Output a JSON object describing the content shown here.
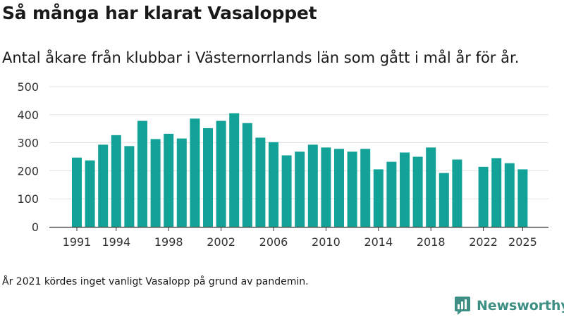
{
  "header": {
    "title": "Så många har klarat Vasaloppet",
    "subtitle": "Antal åkare från klubbar i Västernorrlands län som gått i mål år för år."
  },
  "footnote": "År 2021 kördes inget vanligt Vasalopp på grund av pandemin.",
  "brand": {
    "name": "Newsworthy",
    "icon": "newsworthy-logo-icon",
    "color": "#3d8f84"
  },
  "colors": {
    "bar": "#12a297",
    "grid": "#e3e3e3",
    "axis": "#333333"
  },
  "chart_data": {
    "type": "bar",
    "title": "Så många har klarat Vasaloppet",
    "xlabel": "",
    "ylabel": "",
    "ylim": [
      0,
      500
    ],
    "yticks": [
      0,
      100,
      200,
      300,
      400,
      500
    ],
    "xticks": [
      1991,
      1994,
      1998,
      2002,
      2006,
      2010,
      2014,
      2018,
      2022,
      2025
    ],
    "xrange": [
      1991,
      2025
    ],
    "grid": true,
    "legend": "none",
    "categories": [
      1991,
      1992,
      1993,
      1994,
      1995,
      1996,
      1997,
      1998,
      1999,
      2000,
      2001,
      2002,
      2003,
      2004,
      2005,
      2006,
      2007,
      2008,
      2009,
      2010,
      2011,
      2012,
      2013,
      2014,
      2015,
      2016,
      2017,
      2018,
      2019,
      2020,
      2021,
      2022,
      2023,
      2024,
      2025
    ],
    "values": [
      247,
      237,
      293,
      327,
      288,
      378,
      313,
      332,
      315,
      386,
      352,
      378,
      405,
      370,
      318,
      302,
      255,
      268,
      293,
      283,
      278,
      268,
      278,
      205,
      232,
      265,
      250,
      283,
      192,
      240,
      null,
      214,
      245,
      227,
      205
    ]
  }
}
